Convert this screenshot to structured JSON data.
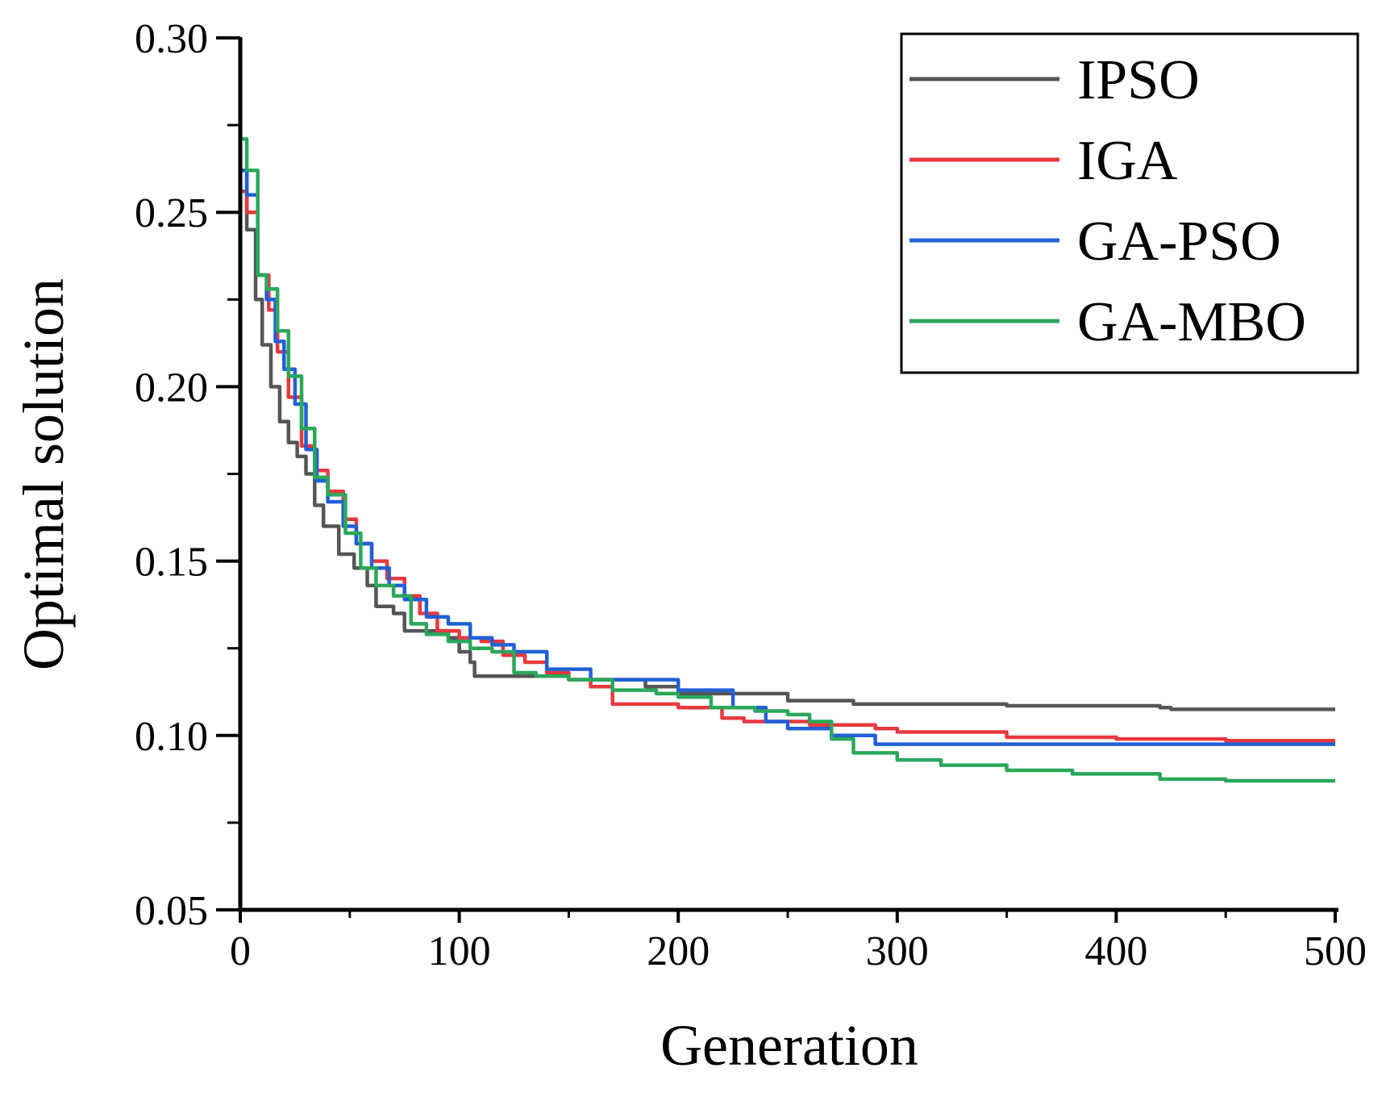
{
  "chart_data": {
    "type": "line",
    "xlabel": "Generation",
    "ylabel": "Optimal solution",
    "xlim": [
      0,
      500
    ],
    "ylim": [
      0.05,
      0.3
    ],
    "xticks": [
      "0",
      "100",
      "200",
      "300",
      "400",
      "500"
    ],
    "yticks": [
      "0.05",
      "0.10",
      "0.15",
      "0.20",
      "0.25",
      "0.30"
    ],
    "grid": false,
    "legend_position": "top-right",
    "series": [
      {
        "name": "IPSO",
        "color": "#555555",
        "x": [
          0,
          3,
          7,
          10,
          14,
          18,
          22,
          26,
          30,
          34,
          38,
          45,
          52,
          58,
          62,
          70,
          75,
          85,
          95,
          100,
          105,
          107,
          120,
          150,
          180,
          185,
          200,
          250,
          280,
          300,
          350,
          420,
          425,
          500
        ],
        "y": [
          0.262,
          0.245,
          0.225,
          0.212,
          0.2,
          0.19,
          0.184,
          0.18,
          0.175,
          0.166,
          0.16,
          0.152,
          0.148,
          0.143,
          0.137,
          0.135,
          0.13,
          0.13,
          0.128,
          0.124,
          0.121,
          0.117,
          0.117,
          0.116,
          0.116,
          0.114,
          0.112,
          0.11,
          0.109,
          0.109,
          0.1085,
          0.108,
          0.1075,
          0.1075
        ]
      },
      {
        "name": "IGA",
        "color": "#e8383d",
        "x": [
          0,
          3,
          8,
          13,
          17,
          22,
          28,
          34,
          40,
          47,
          53,
          60,
          67,
          75,
          82,
          90,
          100,
          110,
          120,
          130,
          140,
          150,
          160,
          168,
          170,
          200,
          220,
          230,
          260,
          290,
          300,
          350,
          400,
          450,
          500
        ],
        "y": [
          0.256,
          0.25,
          0.232,
          0.222,
          0.21,
          0.197,
          0.183,
          0.176,
          0.17,
          0.162,
          0.155,
          0.15,
          0.145,
          0.14,
          0.135,
          0.13,
          0.128,
          0.127,
          0.123,
          0.121,
          0.118,
          0.116,
          0.114,
          0.114,
          0.109,
          0.108,
          0.105,
          0.104,
          0.103,
          0.102,
          0.101,
          0.0995,
          0.099,
          0.0985,
          0.0985
        ]
      },
      {
        "name": "GA-PSO",
        "color": "#2060d8",
        "x": [
          0,
          3,
          8,
          12,
          16,
          20,
          25,
          30,
          35,
          40,
          47,
          53,
          60,
          68,
          75,
          85,
          95,
          105,
          115,
          125,
          140,
          160,
          180,
          200,
          225,
          240,
          250,
          270,
          290,
          300,
          350,
          400,
          450,
          500
        ],
        "y": [
          0.262,
          0.255,
          0.232,
          0.225,
          0.213,
          0.205,
          0.195,
          0.182,
          0.173,
          0.167,
          0.16,
          0.155,
          0.148,
          0.143,
          0.139,
          0.134,
          0.132,
          0.128,
          0.126,
          0.124,
          0.119,
          0.116,
          0.116,
          0.113,
          0.108,
          0.104,
          0.102,
          0.1,
          0.0975,
          0.0975,
          0.0975,
          0.0975,
          0.0975,
          0.0975
        ]
      },
      {
        "name": "GA-MBO",
        "color": "#2aa85a",
        "x": [
          0,
          3,
          8,
          12,
          17,
          22,
          28,
          34,
          40,
          48,
          55,
          62,
          70,
          78,
          85,
          95,
          105,
          115,
          125,
          135,
          150,
          170,
          190,
          200,
          215,
          235,
          250,
          260,
          270,
          280,
          300,
          320,
          350,
          380,
          420,
          450,
          500
        ],
        "y": [
          0.271,
          0.262,
          0.232,
          0.228,
          0.216,
          0.203,
          0.188,
          0.174,
          0.169,
          0.158,
          0.148,
          0.143,
          0.14,
          0.132,
          0.129,
          0.127,
          0.125,
          0.124,
          0.118,
          0.117,
          0.116,
          0.113,
          0.112,
          0.111,
          0.108,
          0.107,
          0.106,
          0.104,
          0.099,
          0.095,
          0.093,
          0.0915,
          0.09,
          0.089,
          0.0875,
          0.087,
          0.087
        ]
      }
    ]
  }
}
